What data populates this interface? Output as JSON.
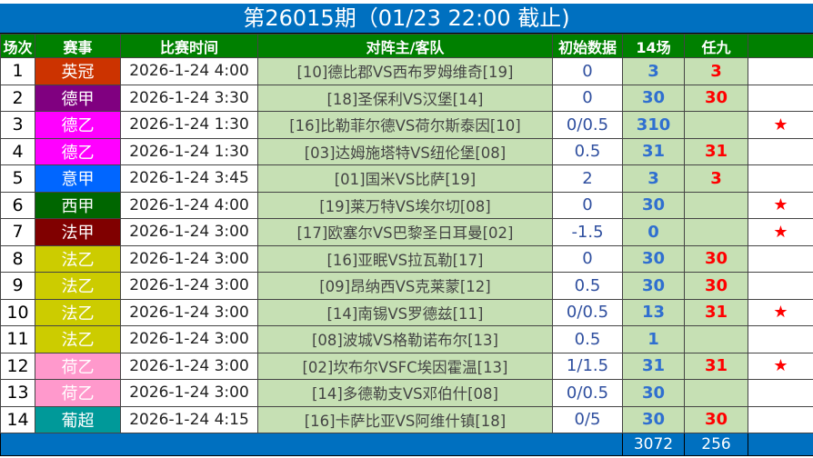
{
  "title": "第26015期（01/23 22:00 截止)",
  "headers": [
    "场次",
    "赛事",
    "比赛时间",
    "对阵主/客队",
    "初始数据",
    "14场",
    "任九",
    ""
  ],
  "rows": [
    {
      "no": "1",
      "league": "英冠",
      "color": "#cc3300",
      "time": "2026-1-24 4:00",
      "match": "[10]德比郡VS西布罗姆维奇[19]",
      "odds": "0",
      "c14": "3",
      "r9": "3",
      "star": ""
    },
    {
      "no": "2",
      "league": "德甲",
      "color": "#800080",
      "time": "2026-1-24 3:30",
      "match": "[18]圣保利VS汉堡[14]",
      "odds": "0",
      "c14": "30",
      "r9": "30",
      "star": ""
    },
    {
      "no": "3",
      "league": "德乙",
      "color": "#ff00ff",
      "time": "2026-1-24 1:30",
      "match": "[16]比勒菲尔德VS荷尔斯泰因[10]",
      "odds": "0/0.5",
      "c14": "310",
      "r9": "",
      "star": "★"
    },
    {
      "no": "4",
      "league": "德乙",
      "color": "#ff00ff",
      "time": "2026-1-24 1:30",
      "match": "[03]达姆施塔特VS纽伦堡[08]",
      "odds": "0.5",
      "c14": "31",
      "r9": "31",
      "star": ""
    },
    {
      "no": "5",
      "league": "意甲",
      "color": "#0066ff",
      "time": "2026-1-24 3:45",
      "match": "[01]国米VS比萨[19]",
      "odds": "2",
      "c14": "3",
      "r9": "3",
      "star": ""
    },
    {
      "no": "6",
      "league": "西甲",
      "color": "#006600",
      "time": "2026-1-24 4:00",
      "match": "[19]莱万特VS埃尔切[08]",
      "odds": "0",
      "c14": "30",
      "r9": "",
      "star": "★"
    },
    {
      "no": "7",
      "league": "法甲",
      "color": "#800000",
      "time": "2026-1-24 3:00",
      "match": "[17]欧塞尔VS巴黎圣日耳曼[02]",
      "odds": "-1.5",
      "c14": "0",
      "r9": "",
      "star": "★"
    },
    {
      "no": "8",
      "league": "法乙",
      "color": "#cccc00",
      "time": "2026-1-24 3:00",
      "match": "[16]亚眠VS拉瓦勒[17]",
      "odds": "0",
      "c14": "30",
      "r9": "30",
      "star": ""
    },
    {
      "no": "9",
      "league": "法乙",
      "color": "#cccc00",
      "time": "2026-1-24 3:00",
      "match": "[09]昂纳西VS克莱蒙[12]",
      "odds": "0.5",
      "c14": "30",
      "r9": "30",
      "star": ""
    },
    {
      "no": "10",
      "league": "法乙",
      "color": "#cccc00",
      "time": "2026-1-24 3:00",
      "match": "[14]南锡VS罗德兹[11]",
      "odds": "0/0.5",
      "c14": "13",
      "r9": "31",
      "star": "★"
    },
    {
      "no": "11",
      "league": "法乙",
      "color": "#cccc00",
      "time": "2026-1-24 3:00",
      "match": "[08]波城VS格勒诺布尔[13]",
      "odds": "0.5",
      "c14": "1",
      "r9": "",
      "star": ""
    },
    {
      "no": "12",
      "league": "荷乙",
      "color": "#ff99cc",
      "time": "2026-1-24 3:00",
      "match": "[02]坎布尔VSFC埃因霍温[13]",
      "odds": "1/1.5",
      "c14": "31",
      "r9": "31",
      "star": "★"
    },
    {
      "no": "13",
      "league": "荷乙",
      "color": "#ff99cc",
      "time": "2026-1-24 3:00",
      "match": "[14]多德勒支VS邓伯什[08]",
      "odds": "0/0.5",
      "c14": "30",
      "r9": "",
      "star": ""
    },
    {
      "no": "14",
      "league": "葡超",
      "color": "#009999",
      "time": "2026-1-24 4:15",
      "match": "[16]卡萨比亚VS阿维什镇[18]",
      "odds": "0/5",
      "c14": "30",
      "r9": "30",
      "star": ""
    }
  ],
  "footer": {
    "total14": "3072",
    "totalR9": "256"
  }
}
